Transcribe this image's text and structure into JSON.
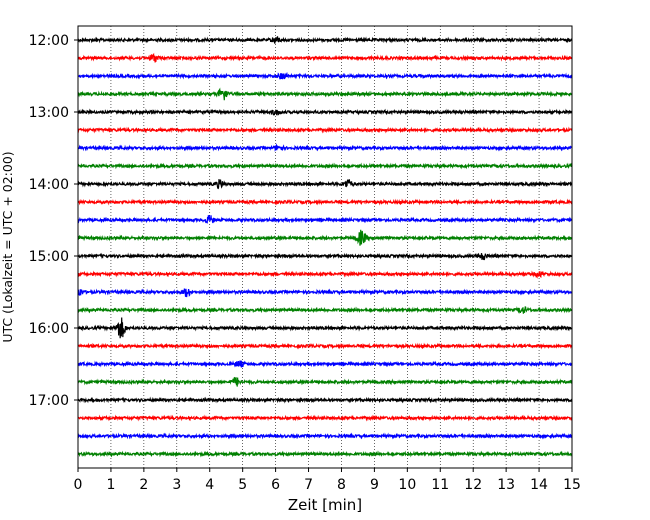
{
  "chart_data": {
    "type": "line",
    "title": "",
    "xlabel": "Zeit  [min]",
    "ylabel": "UTC (Lokalzeit = UTC + 02:00)",
    "xlim": [
      0,
      15
    ],
    "x_ticks": [
      "0",
      "1",
      "2",
      "3",
      "4",
      "5",
      "6",
      "7",
      "8",
      "9",
      "10",
      "11",
      "12",
      "13",
      "14",
      "15"
    ],
    "grid_x": true,
    "y_tick_labels": [
      "12:00",
      "13:00",
      "14:00",
      "15:00",
      "16:00",
      "17:00"
    ],
    "trace_start": "12:00",
    "trace_interval_min": 15,
    "trace_count": 24,
    "trace_colors": [
      "#000000",
      "#ff0000",
      "#0000ff",
      "#008000"
    ],
    "events": [
      {
        "trace": 0,
        "x": 6.0,
        "amp": 0.8
      },
      {
        "trace": 1,
        "x": 2.3,
        "amp": 1.0
      },
      {
        "trace": 2,
        "x": 6.2,
        "amp": 0.7
      },
      {
        "trace": 3,
        "x": 4.4,
        "amp": 1.6
      },
      {
        "trace": 4,
        "x": 6.0,
        "amp": 0.6
      },
      {
        "trace": 6,
        "x": 6.1,
        "amp": 0.6
      },
      {
        "trace": 8,
        "x": 4.3,
        "amp": 0.9
      },
      {
        "trace": 8,
        "x": 8.2,
        "amp": 1.0
      },
      {
        "trace": 12,
        "x": 12.3,
        "amp": 0.8
      },
      {
        "trace": 13,
        "x": 14.0,
        "amp": 0.6
      },
      {
        "trace": 10,
        "x": 4.0,
        "amp": 1.0
      },
      {
        "trace": 11,
        "x": 8.6,
        "amp": 1.8
      },
      {
        "trace": 14,
        "x": 0.0,
        "amp": 1.2
      },
      {
        "trace": 14,
        "x": 3.3,
        "amp": 1.0
      },
      {
        "trace": 15,
        "x": 13.5,
        "amp": 0.8
      },
      {
        "trace": 16,
        "x": 1.3,
        "amp": 2.6
      },
      {
        "trace": 18,
        "x": 4.9,
        "amp": 0.7
      },
      {
        "trace": 19,
        "x": 4.8,
        "amp": 1.0
      }
    ]
  }
}
